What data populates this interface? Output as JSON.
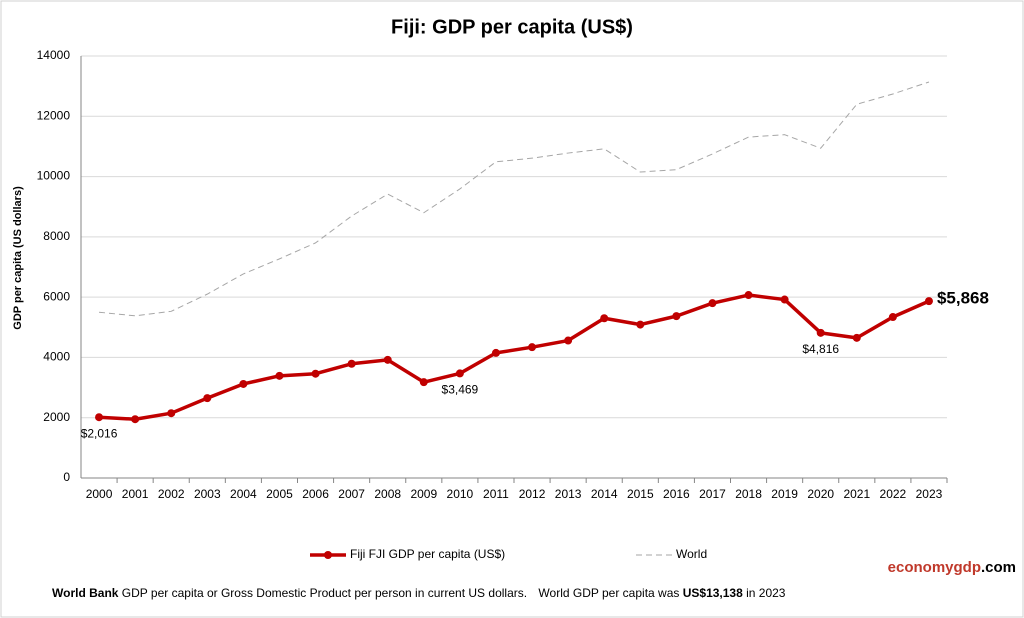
{
  "chart_data": {
    "type": "line",
    "title": "Fiji: GDP per capita (US$)",
    "y_label": "GDP per capita (US dollars)",
    "categories": [
      "2000",
      "2001",
      "2002",
      "2003",
      "2004",
      "2005",
      "2006",
      "2007",
      "2008",
      "2009",
      "2010",
      "2011",
      "2012",
      "2013",
      "2014",
      "2015",
      "2016",
      "2017",
      "2018",
      "2019",
      "2020",
      "2021",
      "2022",
      "2023"
    ],
    "series": [
      {
        "name": "Fiji FJI GDP per capita (US$)",
        "color": "#c00000",
        "values": [
          2016,
          1950,
          2150,
          2650,
          3120,
          3390,
          3460,
          3790,
          3920,
          3180,
          3469,
          4150,
          4340,
          4560,
          5300,
          5090,
          5370,
          5800,
          6070,
          5920,
          4816,
          4650,
          5340,
          5868
        ],
        "value_labels": [
          "$2,016",
          null,
          null,
          null,
          null,
          null,
          null,
          null,
          null,
          null,
          "$3,469",
          null,
          null,
          null,
          null,
          null,
          null,
          null,
          null,
          null,
          "$4,816",
          null,
          null,
          "$5,868"
        ]
      },
      {
        "name": "World",
        "color": "#a6a6a6",
        "dashed": true,
        "values": [
          5500,
          5380,
          5530,
          6100,
          6770,
          7270,
          7800,
          8690,
          9420,
          8800,
          9590,
          10490,
          10610,
          10780,
          10920,
          10150,
          10230,
          10750,
          11310,
          11390,
          10940,
          12400,
          12740,
          13138
        ]
      }
    ],
    "ylim": [
      0,
      14000
    ],
    "yticks": [
      0,
      2000,
      4000,
      6000,
      8000,
      10000,
      12000,
      14000
    ],
    "grid": true,
    "footer": [
      "World Bank",
      "GDP per capita or Gross Domestic Product per person in current US dollars.",
      "World GDP per capita was",
      "US$13,138",
      "in 2023"
    ],
    "brand": [
      "economygdp",
      ".com"
    ]
  }
}
